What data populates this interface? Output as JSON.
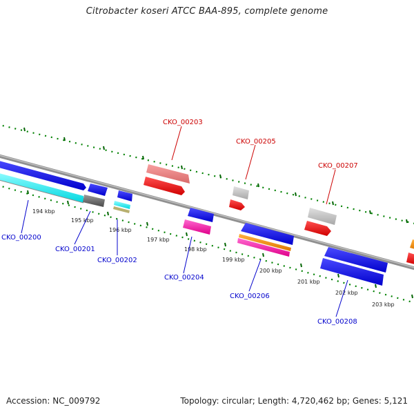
{
  "title": "Citrobacter koseri ATCC BAA-895, complete genome",
  "footer": {
    "accession": "Accession: NC_009792",
    "topology": "Topology: circular; Length: 4,720,462 bp; Genes: 5,121"
  },
  "colors": {
    "forward_label": "#cc0000",
    "reverse_label": "#0000cc",
    "backbone": "#808080",
    "tick": "#008000"
  },
  "tick_labels": [
    "194 kbp",
    "195 kbp",
    "196 kbp",
    "197 kbp",
    "198 kbp",
    "199 kbp",
    "200 kbp",
    "201 kbp",
    "202 kbp",
    "203 kbp"
  ],
  "gene_labels_top": [
    "CKO_00203",
    "CKO_00205",
    "CKO_00207"
  ],
  "gene_labels_bottom": [
    "CKO_00200",
    "CKO_00201",
    "CKO_00202",
    "CKO_00204",
    "CKO_00206",
    "CKO_00208"
  ]
}
